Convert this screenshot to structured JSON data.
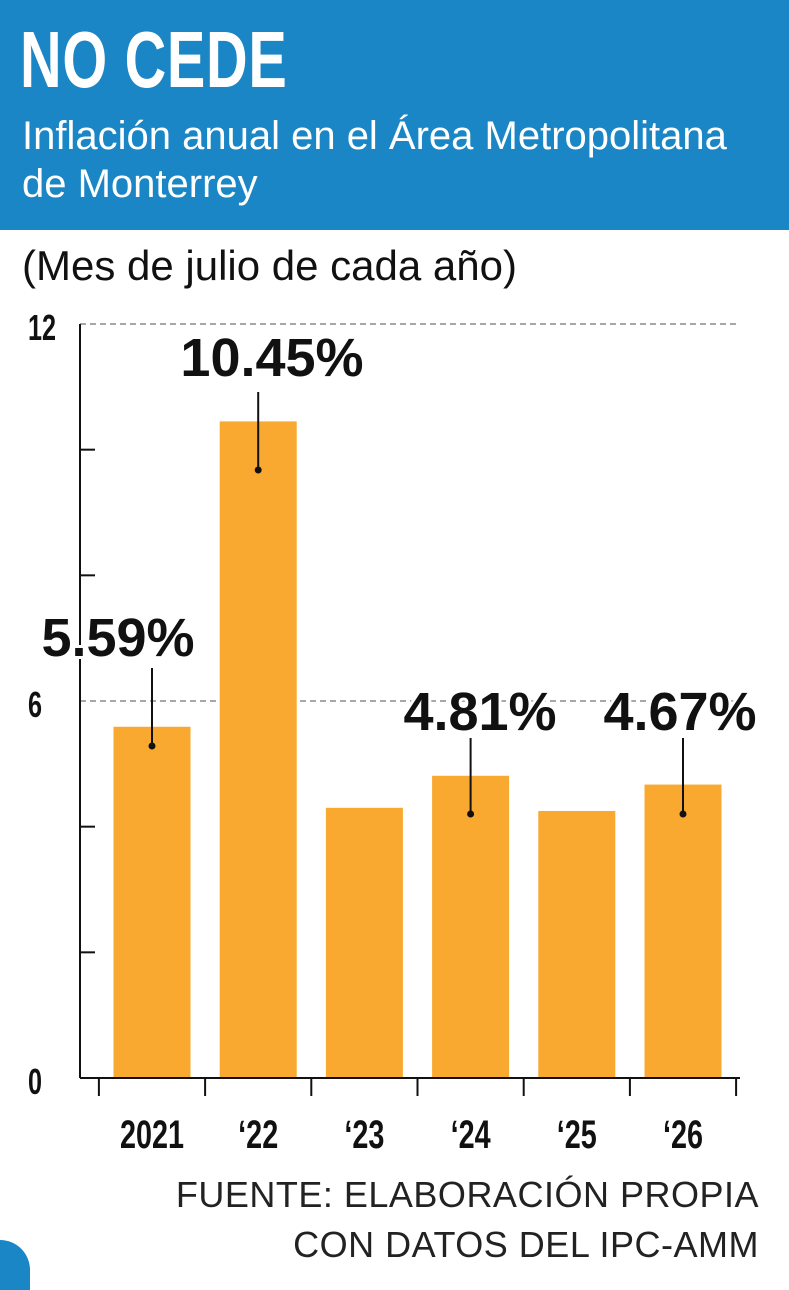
{
  "header": {
    "title": "NO CEDE",
    "subtitle": "Inflación anual en el Área Metropolitana de Monterrey"
  },
  "note": "(Mes de julio de cada año)",
  "source": {
    "line1": "FUENTE: ELABORACIÓN PROPIA",
    "line2": "CON DATOS DEL IPC-AMM"
  },
  "chart_data": {
    "type": "bar",
    "title": "NO CEDE",
    "subtitle": "Inflación anual en el Área Metropolitana de Monterrey",
    "categories": [
      "2021",
      "‘22",
      "‘23",
      "‘24",
      "‘25",
      "‘26"
    ],
    "values": [
      5.59,
      10.45,
      4.3,
      4.81,
      4.25,
      4.67
    ],
    "data_labels": [
      "5.59%",
      "10.45%",
      "",
      "4.81%",
      "",
      "4.67%"
    ],
    "ylim": [
      0,
      12
    ],
    "yticks": [
      0,
      6,
      12
    ],
    "ytick_labels": [
      "0",
      "6",
      "12"
    ],
    "minor_ticks": [
      2,
      4,
      8,
      10
    ],
    "dashed_gridlines": [
      6,
      12
    ],
    "bar_color": "#f9a930",
    "header_color": "#1a86c6",
    "xlabel": "",
    "ylabel": ""
  }
}
